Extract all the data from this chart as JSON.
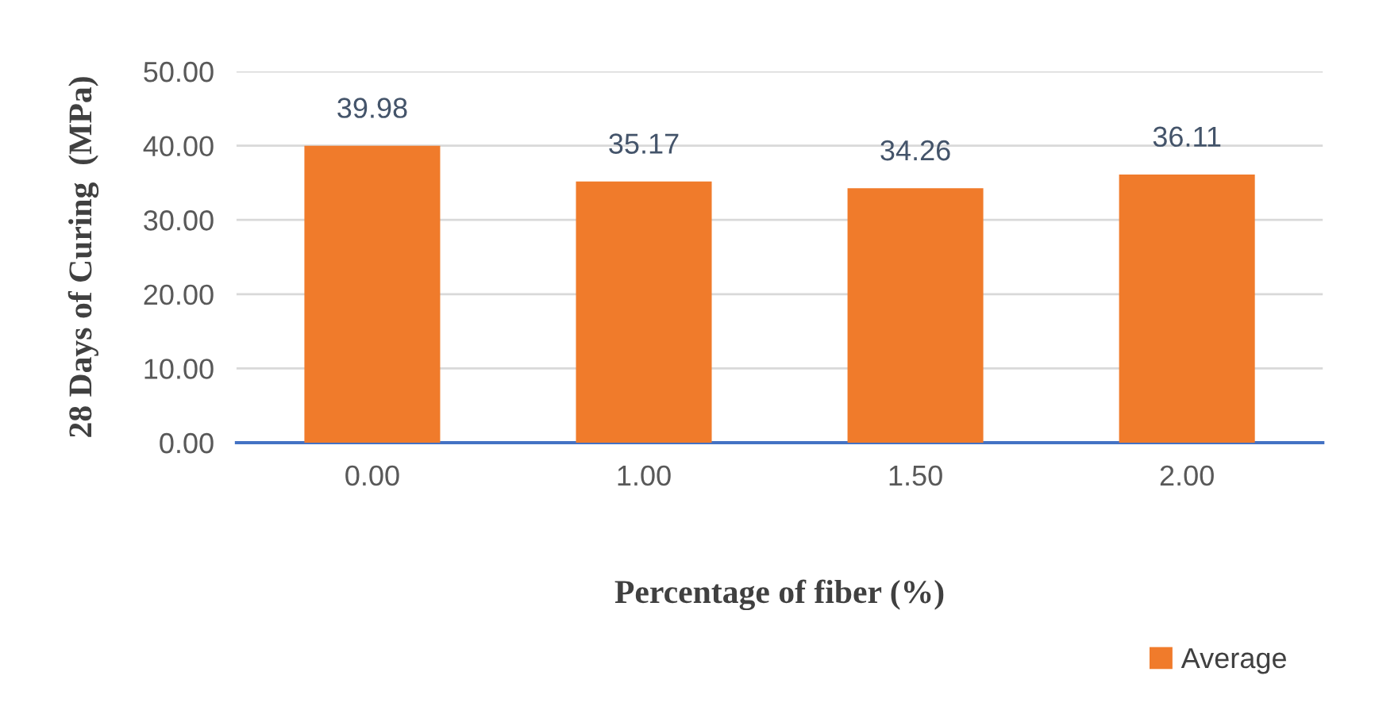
{
  "chart_data": {
    "type": "bar",
    "xlabel": "Percentage of fiber (%)",
    "ylabel": "28 Days of Curing  (MPa)",
    "categories": [
      "0.00",
      "1.00",
      "1.50",
      "2.00"
    ],
    "series": [
      {
        "name": "Average",
        "color": "#f07b2b",
        "values": [
          39.98,
          35.17,
          34.26,
          36.11
        ]
      }
    ],
    "ylim": [
      0,
      50
    ],
    "yticks": [
      {
        "value": 0,
        "label": "0.00"
      },
      {
        "value": 10,
        "label": "10.00"
      },
      {
        "value": 20,
        "label": "20.00"
      },
      {
        "value": 30,
        "label": "30.00"
      },
      {
        "value": 40,
        "label": "40.00"
      },
      {
        "value": 50,
        "label": "50.00"
      }
    ],
    "grid": "y",
    "legend": "bottom right",
    "data_labels": true
  }
}
